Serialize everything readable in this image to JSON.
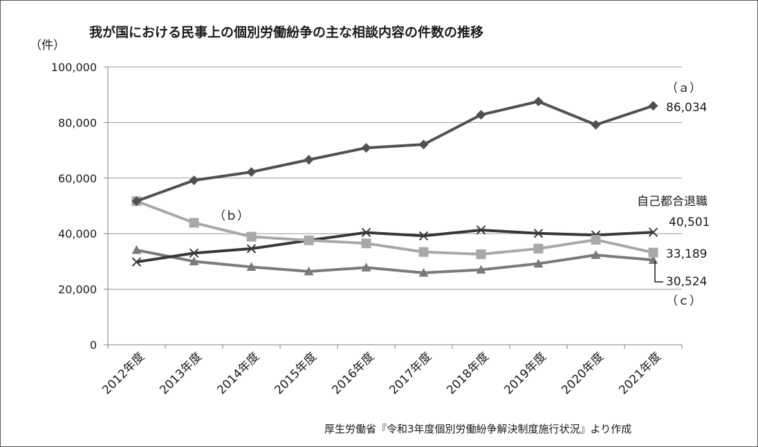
{
  "chart_data": {
    "type": "line",
    "title": "我が国における民事上の個別労働紛争の主な相談内容の件数の推移",
    "ylabel": "（件）",
    "ylim": [
      0,
      100000
    ],
    "yticks": [
      0,
      20000,
      40000,
      60000,
      80000,
      100000
    ],
    "ytick_labels": [
      "0",
      "20,000",
      "40,000",
      "60,000",
      "80,000",
      "100,000"
    ],
    "categories": [
      "2012年度",
      "2013年度",
      "2014年度",
      "2015年度",
      "2016年度",
      "2017年度",
      "2018年度",
      "2019年度",
      "2020年度",
      "2021年度"
    ],
    "grid": true,
    "series": [
      {
        "name": "（ａ）",
        "color": "#505050",
        "marker": "diamond",
        "values": [
          51700,
          59200,
          62200,
          66600,
          70900,
          72100,
          82800,
          87600,
          79200,
          86034
        ],
        "end_label": "86,034"
      },
      {
        "name": "（ｂ）",
        "color": "#a8a8a8",
        "marker": "square",
        "values": [
          51700,
          43900,
          38900,
          37600,
          36500,
          33400,
          32600,
          34600,
          37800,
          33189
        ],
        "end_label": "33,189"
      },
      {
        "name": "自己都合退職",
        "color": "#383838",
        "marker": "x",
        "values": [
          29800,
          33000,
          34600,
          37600,
          40400,
          39200,
          41300,
          40100,
          39500,
          40501
        ],
        "end_label": "40,501"
      },
      {
        "name": "（ｃ）",
        "color": "#7a7a7a",
        "marker": "triangle",
        "values": [
          34100,
          30000,
          28000,
          26400,
          27800,
          25900,
          27000,
          29200,
          32300,
          30524
        ],
        "end_label": "30,524"
      }
    ],
    "source": "厚生労働省『令和3年度個別労働紛争解決制度施行状況』より作成"
  }
}
